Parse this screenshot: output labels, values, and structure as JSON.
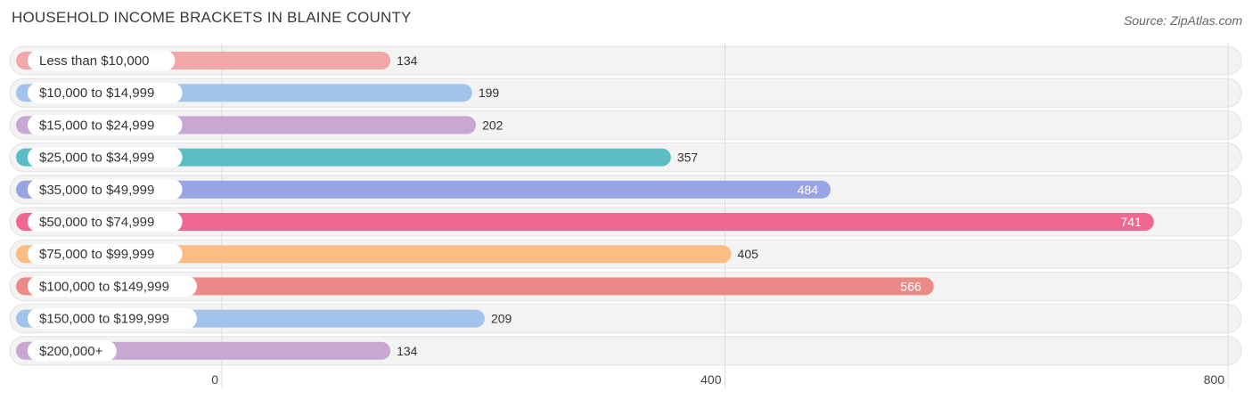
{
  "title": "HOUSEHOLD INCOME BRACKETS IN BLAINE COUNTY",
  "source": "Source: ZipAtlas.com",
  "chart_data": {
    "type": "bar",
    "orientation": "horizontal",
    "title": "HOUSEHOLD INCOME BRACKETS IN BLAINE COUNTY",
    "categories": [
      "Less than $10,000",
      "$10,000 to $14,999",
      "$15,000 to $24,999",
      "$25,000 to $34,999",
      "$35,000 to $49,999",
      "$50,000 to $74,999",
      "$75,000 to $99,999",
      "$100,000 to $149,999",
      "$150,000 to $199,999",
      "$200,000+"
    ],
    "values": [
      134,
      199,
      202,
      357,
      484,
      741,
      405,
      566,
      209,
      134
    ],
    "value_labels": [
      "134",
      "199",
      "202",
      "357",
      "484",
      "741",
      "405",
      "566",
      "209",
      "134"
    ],
    "colors": [
      "#f2a8a8",
      "#a3c4ea",
      "#c9a7d3",
      "#5bbcc6",
      "#98a4e3",
      "#f06890",
      "#fbbd83",
      "#ec8a88",
      "#a3c4ea",
      "#c9a7d3"
    ],
    "xlim": [
      0,
      800
    ],
    "xticks": [
      0,
      400,
      800
    ],
    "xtick_labels": [
      "0",
      "400",
      "800"
    ],
    "grid": true,
    "values_inside_bars": [
      false,
      false,
      false,
      false,
      true,
      true,
      false,
      true,
      false,
      false
    ]
  }
}
